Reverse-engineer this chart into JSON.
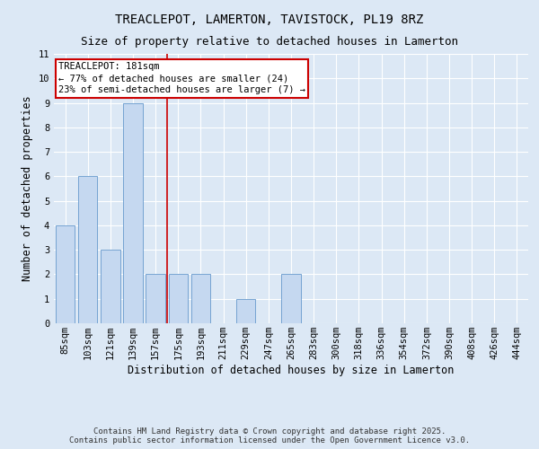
{
  "title1": "TREACLEPOT, LAMERTON, TAVISTOCK, PL19 8RZ",
  "title2": "Size of property relative to detached houses in Lamerton",
  "xlabel": "Distribution of detached houses by size in Lamerton",
  "ylabel": "Number of detached properties",
  "categories": [
    "85sqm",
    "103sqm",
    "121sqm",
    "139sqm",
    "157sqm",
    "175sqm",
    "193sqm",
    "211sqm",
    "229sqm",
    "247sqm",
    "265sqm",
    "283sqm",
    "300sqm",
    "318sqm",
    "336sqm",
    "354sqm",
    "372sqm",
    "390sqm",
    "408sqm",
    "426sqm",
    "444sqm"
  ],
  "values": [
    4,
    6,
    3,
    9,
    2,
    2,
    2,
    0,
    1,
    0,
    2,
    0,
    0,
    0,
    0,
    0,
    0,
    0,
    0,
    0,
    0
  ],
  "bar_color": "#c5d8f0",
  "bar_edge_color": "#6699cc",
  "vline_pos": 4.5,
  "vline_color": "#cc0000",
  "annotation_line1": "TREACLEPOT: 181sqm",
  "annotation_line2": "← 77% of detached houses are smaller (24)",
  "annotation_line3": "23% of semi-detached houses are larger (7) →",
  "annotation_box_color": "#ffffff",
  "annotation_box_edge_color": "#cc0000",
  "ylim": [
    0,
    11
  ],
  "yticks": [
    0,
    1,
    2,
    3,
    4,
    5,
    6,
    7,
    8,
    9,
    10,
    11
  ],
  "background_color": "#dce8f5",
  "grid_color": "#ffffff",
  "footer_text": "Contains HM Land Registry data © Crown copyright and database right 2025.\nContains public sector information licensed under the Open Government Licence v3.0.",
  "title_fontsize": 10,
  "subtitle_fontsize": 9,
  "axis_label_fontsize": 8.5,
  "tick_fontsize": 7.5,
  "annotation_fontsize": 7.5,
  "footer_fontsize": 6.5
}
